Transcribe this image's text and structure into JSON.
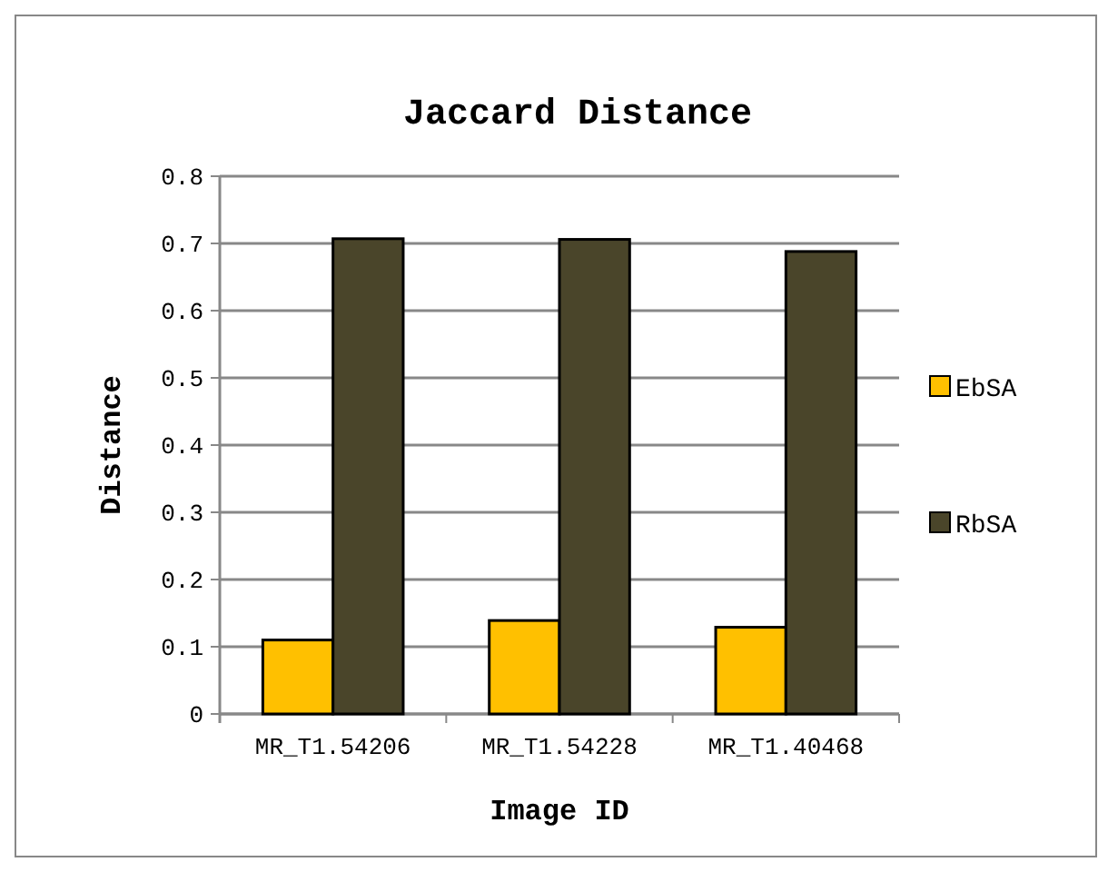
{
  "chart_data": {
    "type": "bar",
    "title": "Jaccard Distance",
    "xlabel": "Image ID",
    "ylabel": "Distance",
    "categories": [
      "MR_T1.54206",
      "MR_T1.54228",
      "MR_T1.40468"
    ],
    "series": [
      {
        "name": "EbSA",
        "color": "#ffc000",
        "values": [
          0.11,
          0.139,
          0.129
        ]
      },
      {
        "name": "RbSA",
        "color": "#4a452a",
        "values": [
          0.707,
          0.706,
          0.688
        ]
      }
    ],
    "ylim": [
      0,
      0.8
    ],
    "yticks": [
      {
        "value": 0,
        "label": "0"
      },
      0.1,
      0.2,
      0.3,
      0.4,
      0.5,
      0.6,
      0.7,
      0.8
    ],
    "grid": "y",
    "legend": "right"
  }
}
